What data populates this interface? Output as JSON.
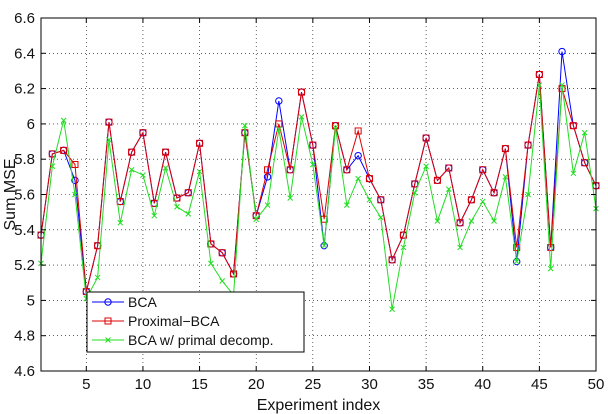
{
  "chart_data": {
    "type": "line",
    "xlabel": "Experiment index",
    "ylabel": "Sum MSE",
    "xlim": [
      1,
      50
    ],
    "ylim": [
      4.6,
      6.6
    ],
    "xticks": [
      5,
      10,
      15,
      20,
      25,
      30,
      35,
      40,
      45,
      50
    ],
    "yticks": [
      4.6,
      4.8,
      5.0,
      5.2,
      5.4,
      5.6,
      5.8,
      6.0,
      6.2,
      6.4,
      6.6
    ],
    "xtick_labels": [
      "5",
      "10",
      "15",
      "20",
      "25",
      "30",
      "35",
      "40",
      "45",
      "50"
    ],
    "ytick_labels": [
      "4.6",
      "4.8",
      "5",
      "5.2",
      "5.4",
      "5.6",
      "5.8",
      "6",
      "6.2",
      "6.4",
      "6.6"
    ],
    "grid": true,
    "legend_position": "bottom-left",
    "x": [
      1,
      2,
      3,
      4,
      5,
      6,
      7,
      8,
      9,
      10,
      11,
      12,
      13,
      14,
      15,
      16,
      17,
      18,
      19,
      20,
      21,
      22,
      23,
      24,
      25,
      26,
      27,
      28,
      29,
      30,
      31,
      32,
      33,
      34,
      35,
      36,
      37,
      38,
      39,
      40,
      41,
      42,
      43,
      44,
      45,
      46,
      47,
      48,
      49,
      50
    ],
    "series": [
      {
        "name": "BCA",
        "color": "#0000ff",
        "marker": "circle",
        "values": [
          5.37,
          5.83,
          5.85,
          5.68,
          5.05,
          5.31,
          6.01,
          5.56,
          5.84,
          5.95,
          5.55,
          5.84,
          5.58,
          5.61,
          5.89,
          5.32,
          5.27,
          5.15,
          5.95,
          5.48,
          5.7,
          6.13,
          5.74,
          6.18,
          5.88,
          5.31,
          5.99,
          5.74,
          5.82,
          5.69,
          5.57,
          5.23,
          5.37,
          5.66,
          5.92,
          5.68,
          5.75,
          5.44,
          5.57,
          5.74,
          5.61,
          5.86,
          5.22,
          5.88,
          6.28,
          5.3,
          6.41,
          5.99,
          5.78,
          5.65
        ]
      },
      {
        "name": "Proximal−BCA",
        "color": "#dd0000",
        "marker": "square",
        "values": [
          5.37,
          5.83,
          5.85,
          5.77,
          5.05,
          5.31,
          6.01,
          5.56,
          5.84,
          5.95,
          5.55,
          5.84,
          5.58,
          5.61,
          5.89,
          5.32,
          5.27,
          5.15,
          5.95,
          5.48,
          5.74,
          6.0,
          5.74,
          6.18,
          5.88,
          5.46,
          5.99,
          5.74,
          5.96,
          5.69,
          5.57,
          5.23,
          5.37,
          5.66,
          5.92,
          5.68,
          5.75,
          5.44,
          5.57,
          5.74,
          5.61,
          5.86,
          5.3,
          5.88,
          6.28,
          5.3,
          6.2,
          5.99,
          5.78,
          5.65
        ]
      },
      {
        "name": "BCA w/ primal decomp.",
        "color": "#22dd22",
        "marker": "x",
        "values": [
          5.21,
          5.76,
          6.02,
          5.6,
          5.01,
          5.13,
          5.91,
          5.44,
          5.74,
          5.71,
          5.48,
          5.75,
          5.53,
          5.49,
          5.73,
          5.21,
          5.11,
          5.03,
          5.99,
          5.46,
          5.54,
          5.97,
          5.58,
          6.04,
          5.77,
          5.31,
          5.98,
          5.54,
          5.69,
          5.57,
          5.47,
          4.95,
          5.3,
          5.61,
          5.76,
          5.45,
          5.63,
          5.3,
          5.45,
          5.56,
          5.45,
          5.7,
          5.22,
          5.6,
          6.22,
          5.18,
          6.22,
          5.72,
          5.95,
          5.52
        ]
      }
    ]
  }
}
